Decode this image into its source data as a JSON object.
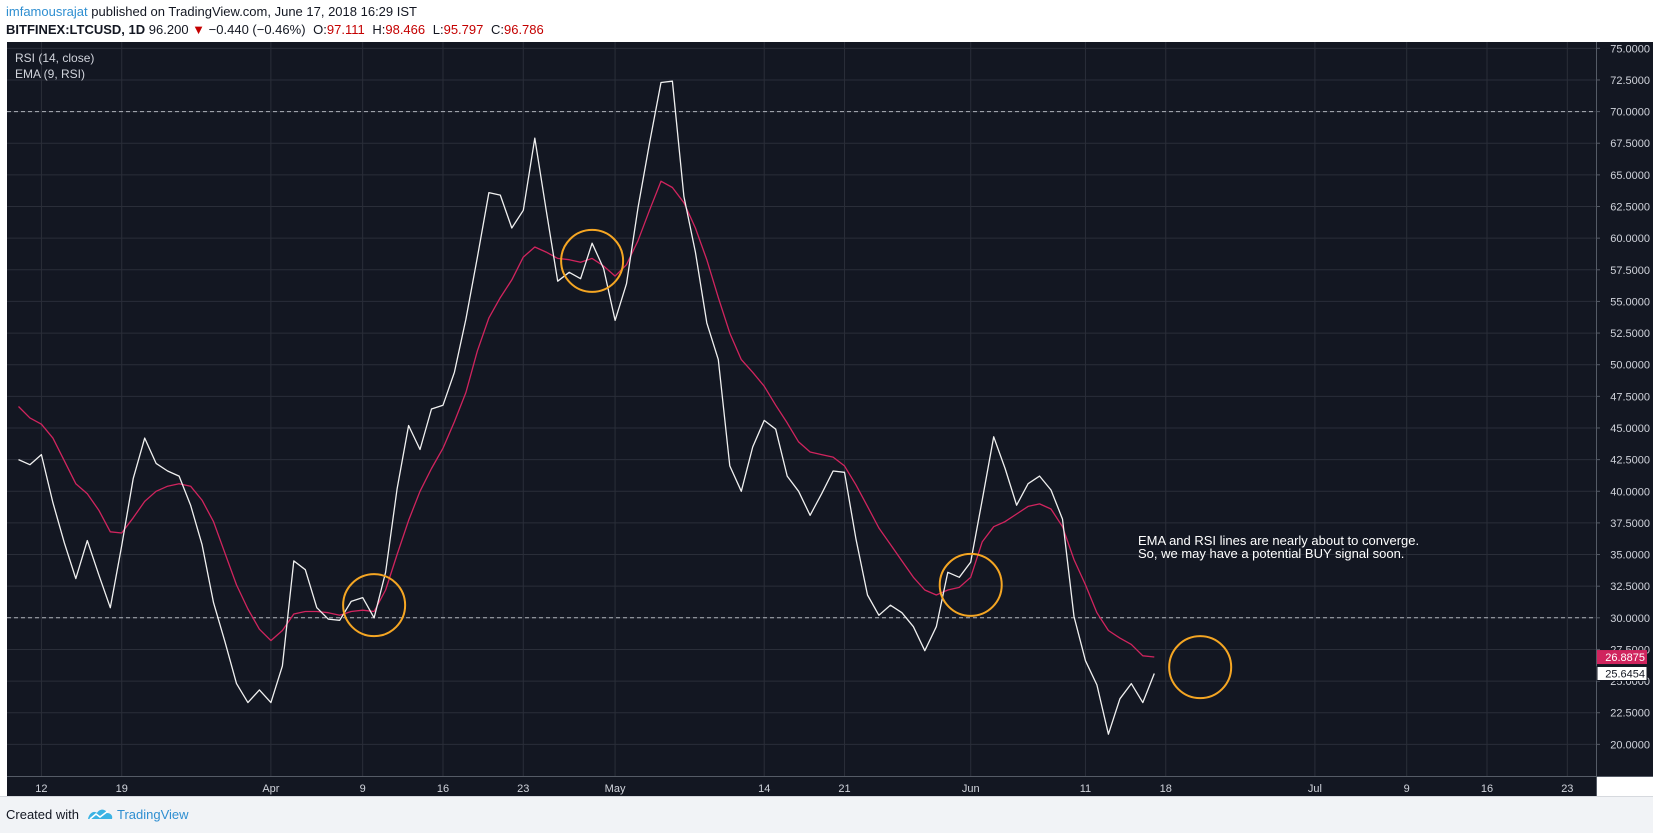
{
  "header": {
    "user": "imfamousrajat",
    "published": "published on TradingView.com, June 17, 2018 16:29 IST",
    "symbol": "BITFINEX:LTCUSD, 1D",
    "price": "96.200",
    "down_arrow": "▼",
    "change": "−0.440 (−0.46%)",
    "o_label": "O:",
    "o": "97.111",
    "h_label": "H:",
    "h": "98.466",
    "l_label": "L:",
    "l": "95.797",
    "c_label": "C:",
    "c": "96.786"
  },
  "legend": {
    "rsi": "RSI (14, close)",
    "ema": "EMA (9, RSI)"
  },
  "annotation": {
    "line1": "EMA and RSI lines are nearly about to converge.",
    "line2": "So, we may have a potential BUY signal soon."
  },
  "footer": {
    "created_with": "Created with",
    "brand": "TradingView",
    "logo_icon": "tradingview-logo-icon"
  },
  "colors": {
    "background": "#131722",
    "grid": "#2a2e39",
    "rsi": "#f0f0f0",
    "ema": "#d0245e",
    "circle": "#f5a623",
    "hline": "#b0b4bc"
  },
  "chart_data": {
    "type": "line",
    "ylim": [
      17.5,
      75.5
    ],
    "y_ticks": [
      "75.0000",
      "72.5000",
      "70.0000",
      "67.5000",
      "65.0000",
      "62.5000",
      "60.0000",
      "57.5000",
      "55.0000",
      "52.5000",
      "50.0000",
      "47.5000",
      "45.0000",
      "42.5000",
      "40.0000",
      "37.5000",
      "35.0000",
      "32.5000",
      "30.0000",
      "27.5000",
      "25.0000",
      "22.5000",
      "20.0000"
    ],
    "x_ticks": [
      {
        "label": "12",
        "day": 0
      },
      {
        "label": "19",
        "day": 7
      },
      {
        "label": "Apr",
        "day": 20
      },
      {
        "label": "9",
        "day": 28
      },
      {
        "label": "16",
        "day": 35
      },
      {
        "label": "23",
        "day": 42
      },
      {
        "label": "May",
        "day": 50
      },
      {
        "label": "14",
        "day": 63
      },
      {
        "label": "21",
        "day": 70
      },
      {
        "label": "Jun",
        "day": 81
      },
      {
        "label": "11",
        "day": 91
      },
      {
        "label": "18",
        "day": 98
      },
      {
        "label": "Jul",
        "day": 111
      },
      {
        "label": "9",
        "day": 119
      },
      {
        "label": "16",
        "day": 126
      },
      {
        "label": "23",
        "day": 133
      }
    ],
    "xlim": [
      -3,
      135.5
    ],
    "hlines": [
      70,
      30
    ],
    "series": [
      {
        "name": "RSI (14, close)",
        "start_day": -2,
        "values": [
          42.5,
          42.1,
          42.9,
          39.1,
          35.9,
          33.1,
          36.1,
          33.4,
          30.8,
          35.7,
          41.0,
          44.2,
          42.2,
          41.6,
          41.2,
          38.9,
          35.8,
          31.2,
          28.1,
          24.8,
          23.3,
          24.3,
          23.3,
          26.2,
          34.5,
          33.8,
          30.8,
          29.9,
          29.8,
          31.3,
          31.6,
          30.0,
          33.6,
          40.2,
          45.2,
          43.3,
          46.5,
          46.8,
          49.4,
          53.6,
          58.5,
          63.6,
          63.4,
          60.8,
          62.2,
          67.9,
          62.2,
          56.6,
          57.3,
          56.8,
          59.6,
          57.6,
          53.5,
          56.4,
          62.4,
          67.5,
          72.3,
          72.4,
          63.3,
          58.9,
          53.3,
          50.4,
          42.0,
          40.0,
          43.5,
          45.6,
          44.9,
          41.2,
          40.0,
          38.1,
          39.8,
          41.6,
          41.5,
          36.2,
          31.8,
          30.2,
          31.0,
          30.4,
          29.3,
          27.4,
          29.3,
          33.6,
          33.2,
          34.4,
          39.3,
          44.3,
          41.8,
          38.9,
          40.6,
          41.2,
          40.1,
          37.8,
          30.1,
          26.6,
          24.7,
          20.8,
          23.6,
          24.8,
          23.3,
          25.6
        ]
      },
      {
        "name": "EMA (9, RSI)",
        "start_day": -2,
        "values": [
          46.7,
          45.8,
          45.3,
          44.2,
          42.4,
          40.6,
          39.8,
          38.5,
          36.8,
          36.7,
          37.9,
          39.2,
          40.0,
          40.4,
          40.6,
          40.4,
          39.3,
          37.6,
          35.1,
          32.6,
          30.7,
          29.1,
          28.2,
          29.0,
          30.3,
          30.5,
          30.5,
          30.4,
          30.2,
          30.5,
          30.6,
          30.5,
          32.2,
          35.0,
          37.7,
          40.0,
          41.8,
          43.4,
          45.5,
          47.8,
          51.1,
          53.7,
          55.3,
          56.7,
          58.5,
          59.3,
          58.9,
          58.4,
          58.3,
          58.1,
          58.4,
          57.8,
          57.0,
          57.9,
          59.8,
          62.2,
          64.5,
          64.0,
          62.8,
          60.8,
          58.3,
          55.3,
          52.5,
          50.4,
          49.4,
          48.3,
          46.8,
          45.4,
          43.9,
          43.1,
          42.9,
          42.7,
          42.0,
          40.5,
          38.8,
          37.1,
          35.8,
          34.5,
          33.2,
          32.2,
          31.8,
          32.2,
          32.4,
          33.2,
          36.0,
          37.2,
          37.6,
          38.2,
          38.8,
          39.0,
          38.6,
          37.2,
          34.6,
          32.6,
          30.4,
          29.0,
          28.4,
          27.9,
          27.0,
          26.9
        ]
      }
    ],
    "last_values": {
      "ema": "26.8875",
      "rsi": "25.6454",
      "partial_tick": "27.5000"
    },
    "highlight_circles": [
      {
        "day": 29,
        "value": 31.0
      },
      {
        "day": 48,
        "value": 58.2
      },
      {
        "day": 81,
        "value": 32.6
      },
      {
        "day": 101,
        "value": 26.1
      }
    ]
  }
}
